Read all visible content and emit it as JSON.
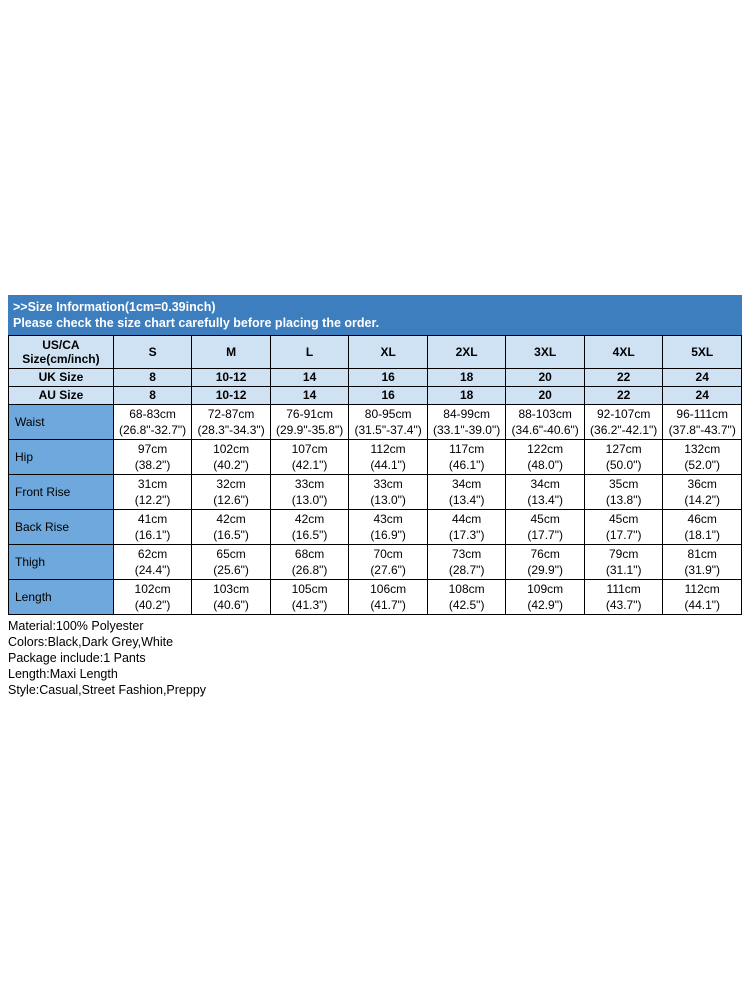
{
  "banner": {
    "title": ">>Size Information(1cm=0.39inch)",
    "subtitle": "Please check the size chart carefully before placing the order."
  },
  "size_table": {
    "corner_header": "US/CA\nSize(cm/inch)",
    "size_headers": [
      "S",
      "M",
      "L",
      "XL",
      "2XL",
      "3XL",
      "4XL",
      "5XL"
    ],
    "size_rows": [
      {
        "label": "UK Size",
        "values": [
          "8",
          "10-12",
          "14",
          "16",
          "18",
          "20",
          "22",
          "24"
        ]
      },
      {
        "label": "AU Size",
        "values": [
          "8",
          "10-12",
          "14",
          "16",
          "18",
          "20",
          "22",
          "24"
        ]
      }
    ],
    "measure_rows": [
      {
        "label": "Waist",
        "values": [
          "68-83cm\n(26.8\"-32.7\")",
          "72-87cm\n(28.3\"-34.3\")",
          "76-91cm\n(29.9\"-35.8\")",
          "80-95cm\n(31.5\"-37.4\")",
          "84-99cm\n(33.1\"-39.0\")",
          "88-103cm\n(34.6\"-40.6\")",
          "92-107cm\n(36.2\"-42.1\")",
          "96-111cm\n(37.8\"-43.7\")"
        ]
      },
      {
        "label": "Hip",
        "values": [
          "97cm\n(38.2\")",
          "102cm\n(40.2\")",
          "107cm\n(42.1\")",
          "112cm\n(44.1\")",
          "117cm\n(46.1\")",
          "122cm\n(48.0\")",
          "127cm\n(50.0\")",
          "132cm\n(52.0\")"
        ]
      },
      {
        "label": "Front Rise",
        "values": [
          "31cm\n(12.2\")",
          "32cm\n(12.6\")",
          "33cm\n(13.0\")",
          "33cm\n(13.0\")",
          "34cm\n(13.4\")",
          "34cm\n(13.4\")",
          "35cm\n(13.8\")",
          "36cm\n(14.2\")"
        ]
      },
      {
        "label": "Back Rise",
        "values": [
          "41cm\n(16.1\")",
          "42cm\n(16.5\")",
          "42cm\n(16.5\")",
          "43cm\n(16.9\")",
          "44cm\n(17.3\")",
          "45cm\n(17.7\")",
          "45cm\n(17.7\")",
          "46cm\n(18.1\")"
        ]
      },
      {
        "label": "Thigh",
        "values": [
          "62cm\n(24.4\")",
          "65cm\n(25.6\")",
          "68cm\n(26.8\")",
          "70cm\n(27.6\")",
          "73cm\n(28.7\")",
          "76cm\n(29.9\")",
          "79cm\n(31.1\")",
          "81cm\n(31.9\")"
        ]
      },
      {
        "label": "Length",
        "values": [
          "102cm\n(40.2\")",
          "103cm\n(40.6\")",
          "105cm\n(41.3\")",
          "106cm\n(41.7\")",
          "108cm\n(42.5\")",
          "109cm\n(42.9\")",
          "111cm\n(43.7\")",
          "112cm\n(44.1\")"
        ]
      }
    ]
  },
  "details": [
    "Material:100% Polyester",
    "Colors:Black,Dark Grey,White",
    "Package include:1 Pants",
    "Length:Maxi Length",
    "Style:Casual,Street Fashion,Preppy"
  ],
  "colors": {
    "banner_bg": "#3D7EBF",
    "header_bg": "#CFE2F3",
    "label_bg": "#6FA8DC",
    "border": "#000000"
  }
}
